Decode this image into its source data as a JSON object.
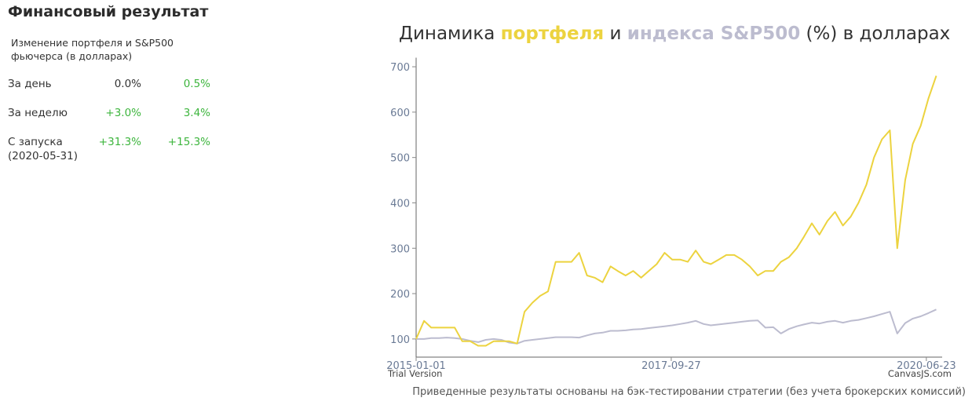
{
  "panel": {
    "title": "Финансовый результат",
    "subtitle": "Изменение портфеля и S&P500 фьючерса (в долларах)",
    "rows": [
      [
        "За день",
        "0.0%",
        "0.5%"
      ],
      [
        "За неделю",
        "+3.0%",
        "3.4%"
      ],
      [
        "С запуска (2020-05-31)",
        "+31.3%",
        "+15.3%"
      ]
    ]
  },
  "chart_data": {
    "type": "line",
    "title_parts": [
      "Динамика",
      "и",
      "(%) в долларах"
    ],
    "x": [
      "2015-01-01",
      "2015-02-01",
      "2015-03-01",
      "2015-04-01",
      "2015-05-01",
      "2015-06-01",
      "2015-07-01",
      "2015-08-01",
      "2015-09-01",
      "2015-10-01",
      "2015-11-01",
      "2015-12-01",
      "2016-01-01",
      "2016-02-01",
      "2016-03-01",
      "2016-04-01",
      "2016-05-01",
      "2016-06-01",
      "2016-07-01",
      "2016-08-01",
      "2016-09-01",
      "2016-10-01",
      "2016-11-01",
      "2016-12-01",
      "2017-01-01",
      "2017-02-01",
      "2017-03-01",
      "2017-04-01",
      "2017-05-01",
      "2017-06-01",
      "2017-07-01",
      "2017-08-01",
      "2017-09-01",
      "2017-10-01",
      "2017-11-01",
      "2017-12-01",
      "2018-01-01",
      "2018-02-01",
      "2018-03-01",
      "2018-04-01",
      "2018-05-01",
      "2018-06-01",
      "2018-07-01",
      "2018-08-01",
      "2018-09-01",
      "2018-10-01",
      "2018-11-01",
      "2018-12-01",
      "2019-01-01",
      "2019-02-01",
      "2019-03-01",
      "2019-04-01",
      "2019-05-01",
      "2019-06-01",
      "2019-07-01",
      "2019-08-01",
      "2019-09-01",
      "2019-10-01",
      "2019-11-01",
      "2019-12-01",
      "2020-01-01",
      "2020-02-01",
      "2020-03-01",
      "2020-04-01",
      "2020-05-01",
      "2020-06-01",
      "2020-07-01",
      "2020-08-01"
    ],
    "series": [
      {
        "name": "портфеля",
        "color": "#ecd33f",
        "values": [
          100,
          140,
          125,
          125,
          125,
          125,
          95,
          95,
          85,
          85,
          95,
          95,
          95,
          90,
          160,
          180,
          195,
          205,
          270,
          270,
          270,
          290,
          240,
          235,
          225,
          260,
          250,
          240,
          250,
          235,
          250,
          265,
          290,
          275,
          275,
          270,
          295,
          270,
          265,
          275,
          285,
          285,
          275,
          260,
          240,
          250,
          250,
          270,
          280,
          300,
          325,
          355,
          330,
          360,
          380,
          350,
          370,
          400,
          440,
          500,
          540,
          560,
          300,
          450,
          530,
          570,
          630,
          680
        ]
      },
      {
        "name": "индекса S&P500",
        "color": "#bcbccf",
        "values": [
          100,
          100,
          102,
          102,
          103,
          102,
          100,
          96,
          93,
          98,
          100,
          98,
          92,
          90,
          96,
          98,
          100,
          102,
          104,
          104,
          104,
          103,
          108,
          112,
          114,
          118,
          118,
          119,
          121,
          122,
          124,
          126,
          128,
          130,
          133,
          136,
          140,
          133,
          130,
          132,
          134,
          136,
          138,
          140,
          141,
          125,
          126,
          112,
          122,
          128,
          132,
          136,
          134,
          138,
          140,
          136,
          140,
          142,
          146,
          150,
          155,
          160,
          112,
          135,
          145,
          150,
          157,
          165
        ]
      }
    ],
    "xlim": [
      "2015-01-01",
      "2020-08-24"
    ],
    "xticks": [
      "2015-01-01",
      "2017-09-27",
      "2020-06-23"
    ],
    "ylim": [
      60,
      720
    ],
    "yticks": [
      100,
      200,
      300,
      400,
      500,
      600,
      700
    ],
    "footnote": "Приведенные результаты основаны на бэк-тестировании стратегии (без учета брокерских комиссий)",
    "watermark_left": "Trial Version",
    "watermark_right": "CanvasJS.com"
  }
}
